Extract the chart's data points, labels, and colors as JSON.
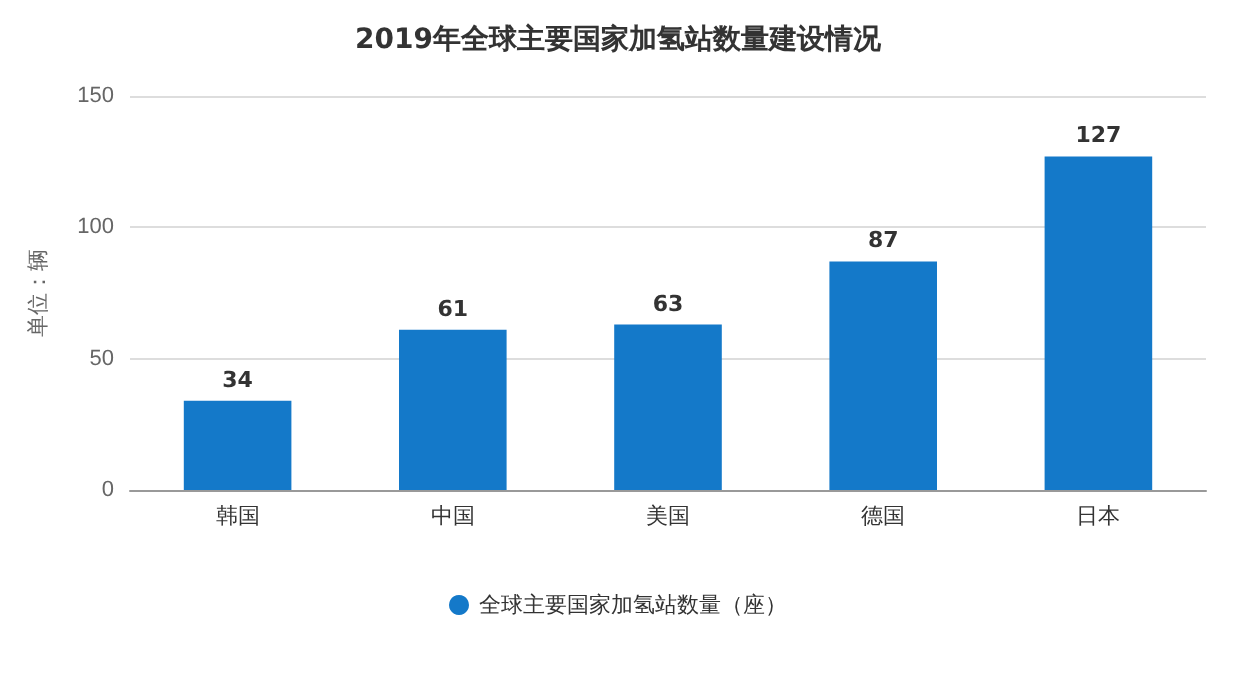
{
  "chart_data": {
    "type": "bar",
    "title": "2019年全球主要国家加氢站数量建设情况",
    "ylabel": "单位：辆",
    "categories": [
      "韩国",
      "中国",
      "美国",
      "德国",
      "日本"
    ],
    "series": [
      {
        "name": "全球主要国家加氢站数量（座）",
        "color": "#1479c9",
        "values": [
          34,
          61,
          63,
          87,
          127
        ]
      }
    ],
    "ylim": [
      0,
      150
    ],
    "yticks": [
      0,
      50,
      100,
      150
    ],
    "grid": "y",
    "legend": "bottom",
    "data_labels": true
  }
}
